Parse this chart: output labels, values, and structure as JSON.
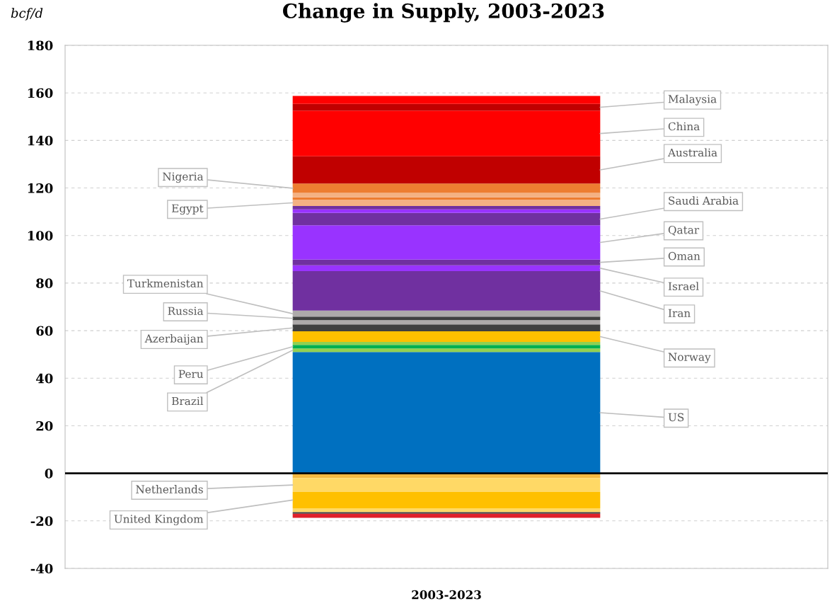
{
  "chart_data": {
    "type": "bar",
    "title": "Change in Supply, 2003-2023",
    "ylabel": "bcf/d",
    "categories": [
      "2003-2023"
    ],
    "stacked": true,
    "series": [
      {
        "name": "US",
        "color": "#0070c0",
        "values": [
          51.0
        ]
      },
      {
        "name": "Brazil",
        "color": "#92d050",
        "values": [
          1.5
        ]
      },
      {
        "name": "Peru",
        "color": "#00b050",
        "values": [
          1.5
        ]
      },
      {
        "color": "#92d050",
        "values": [
          1.3
        ]
      },
      {
        "name": "Norway",
        "color": "#ffc000",
        "values": [
          4.4
        ]
      },
      {
        "name": "Azerbaijan",
        "color": "#404040",
        "values": [
          2.9
        ]
      },
      {
        "color": "#aeaaaa",
        "values": [
          1.8
        ]
      },
      {
        "name": "Russia",
        "color": "#404040",
        "values": [
          1.5
        ]
      },
      {
        "name": "Turkmenistan",
        "color": "#aeaaaa",
        "values": [
          2.5
        ]
      },
      {
        "name": "Iran",
        "color": "#7030a0",
        "values": [
          16.6
        ]
      },
      {
        "name": "Israel",
        "color": "#9933ff",
        "values": [
          2.5
        ]
      },
      {
        "name": "Oman",
        "color": "#7030a0",
        "values": [
          2.4
        ]
      },
      {
        "name": "Qatar",
        "color": "#9933ff",
        "values": [
          14.4
        ]
      },
      {
        "name": "Saudi Arabia",
        "color": "#7030a0",
        "values": [
          5.2
        ]
      },
      {
        "color": "#9933ff",
        "values": [
          1.5
        ]
      },
      {
        "color": "#7030a0",
        "values": [
          1.4
        ]
      },
      {
        "name": "Egypt",
        "color": "#f4b183",
        "values": [
          2.7
        ]
      },
      {
        "color": "#ed7d31",
        "values": [
          1.0
        ]
      },
      {
        "color": "#f4b183",
        "values": [
          1.8
        ]
      },
      {
        "name": "Nigeria",
        "color": "#ed7d31",
        "values": [
          4.0
        ]
      },
      {
        "name": "Australia",
        "color": "#c00000",
        "values": [
          11.4
        ]
      },
      {
        "name": "China",
        "color": "#ff0000",
        "values": [
          19.2
        ]
      },
      {
        "name": "Malaysia",
        "color": "#c00000",
        "values": [
          2.9
        ]
      },
      {
        "color": "#ff0000",
        "values": [
          3.3
        ]
      },
      {
        "color": "#f4b942",
        "values": [
          -2.0
        ]
      },
      {
        "name": "Netherlands",
        "color": "#ffd966",
        "values": [
          -5.8
        ]
      },
      {
        "name": "United Kingdom",
        "color": "#ffc000",
        "values": [
          -6.9
        ]
      },
      {
        "color": "#ffd966",
        "values": [
          -1.6
        ]
      },
      {
        "color": "#404040",
        "values": [
          -0.7
        ]
      },
      {
        "color": "#e0202a",
        "values": [
          -1.7
        ]
      }
    ],
    "ylim": [
      -40,
      180
    ],
    "yticks": [
      -40,
      -20,
      0,
      20,
      40,
      60,
      80,
      100,
      120,
      140,
      160,
      180
    ],
    "grid": "y",
    "legend": false,
    "ref_lines": [
      {
        "axis": "y",
        "value": 0,
        "color": "#000000"
      }
    ]
  }
}
